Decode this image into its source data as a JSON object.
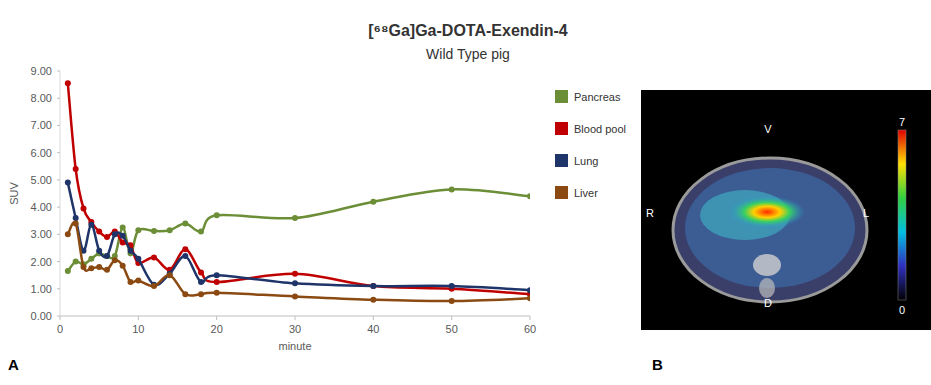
{
  "chart_data": {
    "type": "line",
    "title": "[⁶⁸Ga]Ga-DOTA-Exendin-4",
    "subtitle": "Wild Type pig",
    "x_label": "minute",
    "y_label": "SUV",
    "x": [
      1,
      2,
      3,
      4,
      5,
      6,
      7,
      8,
      9,
      10,
      12,
      14,
      16,
      18,
      20,
      30,
      40,
      50,
      60
    ],
    "series": [
      {
        "name": "Pancreas",
        "color": "#6b8e37",
        "values": [
          1.65,
          2.0,
          1.9,
          2.1,
          2.3,
          2.2,
          2.2,
          3.25,
          2.3,
          3.15,
          3.12,
          3.15,
          3.4,
          3.1,
          3.7,
          3.6,
          4.2,
          4.65,
          4.4
        ]
      },
      {
        "name": "Blood pool",
        "color": "#c00000",
        "values": [
          8.55,
          5.4,
          3.95,
          3.45,
          3.1,
          2.9,
          3.1,
          2.7,
          2.6,
          1.95,
          2.15,
          1.7,
          2.45,
          1.6,
          1.25,
          1.55,
          1.1,
          1.0,
          0.8
        ]
      },
      {
        "name": "Lung",
        "color": "#1f3569",
        "values": [
          4.9,
          3.6,
          2.4,
          3.35,
          2.4,
          2.2,
          3.0,
          2.95,
          2.4,
          2.1,
          1.15,
          1.55,
          2.2,
          1.25,
          1.5,
          1.2,
          1.1,
          1.1,
          0.95
        ]
      },
      {
        "name": "Liver",
        "color": "#8b4a12",
        "values": [
          3.0,
          3.4,
          1.8,
          1.75,
          1.8,
          1.7,
          2.05,
          1.85,
          1.25,
          1.3,
          1.1,
          1.5,
          0.8,
          0.8,
          0.85,
          0.72,
          0.6,
          0.55,
          0.65
        ]
      }
    ],
    "xlim": [
      0,
      60
    ],
    "xticks": [
      0,
      10,
      20,
      30,
      40,
      50,
      60
    ],
    "ylim": [
      0,
      9
    ],
    "yticks": [
      {
        "value": 0,
        "label": "0.00"
      },
      {
        "value": 1,
        "label": "1.00"
      },
      {
        "value": 2,
        "label": "2.00"
      },
      {
        "value": 3,
        "label": "3.00"
      },
      {
        "value": 4,
        "label": "4.00"
      },
      {
        "value": 5,
        "label": "5.00"
      },
      {
        "value": 6,
        "label": "6.00"
      },
      {
        "value": 7,
        "label": "7.00"
      },
      {
        "value": 8,
        "label": "8.00"
      },
      {
        "value": 9,
        "label": "9.00"
      }
    ],
    "grid": false,
    "legend": "right",
    "marker": "circle"
  },
  "image": {
    "orientation_labels": {
      "top": "V",
      "left": "R",
      "right": "L",
      "bottom": "D"
    },
    "colorbar": {
      "range": [
        0,
        7
      ],
      "ticks": [
        0,
        7
      ]
    }
  },
  "panel_labels": [
    "A",
    "B"
  ]
}
